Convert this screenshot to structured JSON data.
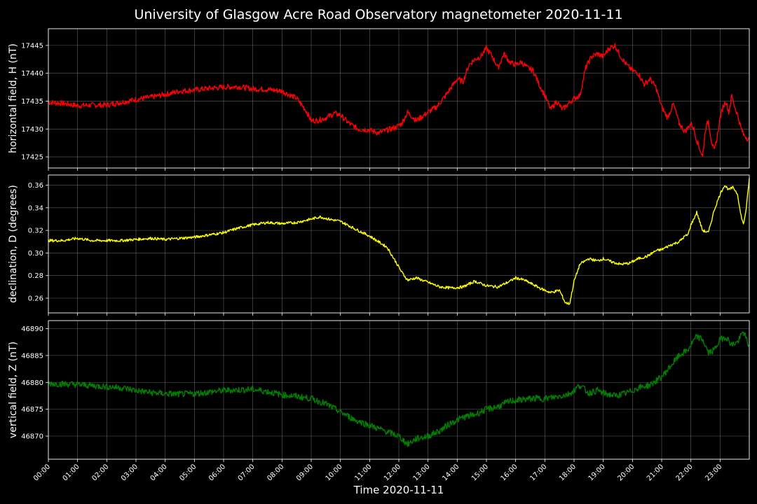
{
  "chart_data": {
    "title": "University of Glasgow Acre Road Observatory magnetometer 2020-11-11",
    "xlabel": "Time 2020-11-11",
    "x_tick_labels": [
      "00:00",
      "01:00",
      "02:00",
      "03:00",
      "04:00",
      "05:00",
      "06:00",
      "07:00",
      "08:00",
      "09:00",
      "10:00",
      "11:00",
      "12:00",
      "13:00",
      "14:00",
      "15:00",
      "16:00",
      "17:00",
      "18:00",
      "19:00",
      "20:00",
      "21:00",
      "22:00",
      "23:00"
    ],
    "xlim_hours": [
      0,
      24
    ],
    "grid": true,
    "background": "#000000",
    "panels": [
      {
        "type": "line",
        "ylabel": "horizontal field, H (nT)",
        "color": "#ff0000",
        "ylim": [
          17423,
          17448
        ],
        "yticks": [
          17425,
          17430,
          17435,
          17440,
          17445
        ],
        "ytick_labels": [
          "17425",
          "17430",
          "17435",
          "17440",
          "17445"
        ],
        "noise": 0.5,
        "x": [
          0,
          0.5,
          1,
          1.5,
          2,
          2.5,
          3,
          3.5,
          4,
          4.5,
          5,
          5.5,
          6,
          6.5,
          7,
          7.5,
          8,
          8.5,
          8.8,
          9,
          9.2,
          9.5,
          9.8,
          10,
          10.3,
          10.6,
          11,
          11.3,
          11.6,
          11.9,
          12.1,
          12.3,
          12.6,
          13,
          13.3,
          13.6,
          13.8,
          14,
          14.2,
          14.4,
          14.6,
          14.8,
          15,
          15.2,
          15.4,
          15.6,
          15.8,
          16,
          16.2,
          16.4,
          16.6,
          16.8,
          17,
          17.2,
          17.4,
          17.6,
          17.8,
          18,
          18.2,
          18.4,
          18.6,
          18.8,
          19,
          19.2,
          19.4,
          19.6,
          19.8,
          20,
          20.2,
          20.4,
          20.6,
          20.8,
          21,
          21.2,
          21.4,
          21.6,
          21.8,
          22,
          22.1,
          22.2,
          22.3,
          22.4,
          22.5,
          22.6,
          22.7,
          22.8,
          22.9,
          23,
          23.1,
          23.2,
          23.3,
          23.4,
          23.5,
          23.6,
          23.7,
          23.8,
          23.9,
          24
        ],
        "y": [
          17434.8,
          17434.6,
          17434.2,
          17434.3,
          17434.3,
          17434.8,
          17435.3,
          17435.7,
          17436.2,
          17436.8,
          17437.0,
          17437.3,
          17437.5,
          17437.6,
          17437.2,
          17437.1,
          17436.8,
          17435.5,
          17433.5,
          17431.5,
          17431.5,
          17432.0,
          17432.8,
          17432.5,
          17431.0,
          17430.0,
          17429.8,
          17429.3,
          17429.8,
          17430.3,
          17431.0,
          17433.0,
          17431.5,
          17433.0,
          17434.0,
          17436.0,
          17437.5,
          17439.0,
          17438.5,
          17441.5,
          17442.5,
          17443.0,
          17444.5,
          17443.0,
          17441.0,
          17443.5,
          17442.0,
          17441.5,
          17442.0,
          17441.0,
          17440.5,
          17438.0,
          17436.0,
          17433.5,
          17435.0,
          17433.5,
          17434.5,
          17435.5,
          17436.0,
          17441.0,
          17443.0,
          17443.5,
          17443.0,
          17444.5,
          17445.0,
          17443.0,
          17441.5,
          17440.5,
          17440.0,
          17438.0,
          17439.0,
          17437.5,
          17434.0,
          17432.0,
          17434.5,
          17431.0,
          17429.5,
          17431.0,
          17430.0,
          17428.0,
          17426.5,
          17425.0,
          17430.0,
          17431.5,
          17428.0,
          17426.0,
          17428.5,
          17432.0,
          17434.0,
          17435.0,
          17433.0,
          17436.0,
          17434.0,
          17432.5,
          17430.5,
          17429.0,
          17428.5,
          17428.0
        ]
      },
      {
        "type": "line",
        "ylabel": "declination, D (degrees)",
        "color": "#ffff00",
        "ylim": [
          0.247,
          0.369
        ],
        "yticks": [
          0.26,
          0.28,
          0.3,
          0.32,
          0.34,
          0.36
        ],
        "ytick_labels": [
          "0.26",
          "0.28",
          "0.30",
          "0.32",
          "0.34",
          "0.36"
        ],
        "noise": 0.0012,
        "x": [
          0,
          0.5,
          1,
          1.5,
          2,
          2.5,
          3,
          3.5,
          4,
          4.5,
          5,
          5.5,
          6,
          6.5,
          7,
          7.5,
          8,
          8.5,
          9,
          9.3,
          9.6,
          10,
          10.3,
          10.6,
          11,
          11.3,
          11.6,
          11.9,
          12.1,
          12.3,
          12.6,
          13,
          13.4,
          13.8,
          14.2,
          14.6,
          15,
          15.4,
          15.8,
          16,
          16.3,
          16.6,
          16.9,
          17.2,
          17.5,
          17.7,
          17.85,
          18,
          18.2,
          18.5,
          18.8,
          19,
          19.3,
          19.6,
          19.9,
          20.2,
          20.5,
          20.8,
          21,
          21.3,
          21.6,
          21.8,
          21.9,
          22,
          22.1,
          22.2,
          22.4,
          22.6,
          22.8,
          23,
          23.15,
          23.3,
          23.45,
          23.6,
          23.7,
          23.8,
          23.9,
          24
        ],
        "y": [
          0.311,
          0.311,
          0.313,
          0.311,
          0.311,
          0.311,
          0.312,
          0.313,
          0.312,
          0.313,
          0.314,
          0.316,
          0.318,
          0.322,
          0.325,
          0.327,
          0.326,
          0.327,
          0.33,
          0.332,
          0.33,
          0.328,
          0.324,
          0.32,
          0.315,
          0.31,
          0.305,
          0.292,
          0.283,
          0.276,
          0.278,
          0.274,
          0.27,
          0.269,
          0.27,
          0.275,
          0.271,
          0.27,
          0.275,
          0.278,
          0.276,
          0.272,
          0.268,
          0.265,
          0.267,
          0.256,
          0.255,
          0.275,
          0.29,
          0.295,
          0.293,
          0.295,
          0.292,
          0.29,
          0.291,
          0.295,
          0.297,
          0.302,
          0.303,
          0.307,
          0.31,
          0.315,
          0.316,
          0.325,
          0.33,
          0.336,
          0.32,
          0.318,
          0.338,
          0.352,
          0.36,
          0.356,
          0.358,
          0.352,
          0.335,
          0.325,
          0.34,
          0.366
        ]
      },
      {
        "type": "line",
        "ylabel": "vertical field, Z (nT)",
        "color": "#008000",
        "ylim": [
          46865.7,
          46891.5
        ],
        "yticks": [
          46870,
          46875,
          46880,
          46885,
          46890
        ],
        "ytick_labels": [
          "46870",
          "46875",
          "46880",
          "46885",
          "46890"
        ],
        "noise": 0.6,
        "x": [
          0,
          0.5,
          1,
          1.5,
          2,
          2.5,
          3,
          3.5,
          4,
          4.5,
          5,
          5.5,
          6,
          6.5,
          7,
          7.5,
          8,
          8.5,
          9,
          9.5,
          10,
          10.5,
          11,
          11.5,
          12,
          12.3,
          12.6,
          13,
          13.4,
          13.8,
          14.2,
          14.6,
          15,
          15.4,
          15.8,
          16.2,
          16.6,
          17,
          17.4,
          17.8,
          18,
          18.2,
          18.5,
          18.8,
          19,
          19.4,
          19.8,
          20.2,
          20.6,
          21,
          21.3,
          21.6,
          21.9,
          22,
          22.2,
          22.4,
          22.6,
          22.8,
          23,
          23.2,
          23.4,
          23.6,
          23.8,
          24
        ],
        "y": [
          46879.8,
          46879.7,
          46879.6,
          46879.4,
          46879.2,
          46879.0,
          46878.5,
          46878.1,
          46877.9,
          46877.8,
          46877.9,
          46878.2,
          46878.5,
          46878.6,
          46878.7,
          46878.3,
          46877.7,
          46877.4,
          46877.0,
          46876.0,
          46874.5,
          46873.0,
          46872.0,
          46871.0,
          46870.0,
          46868.5,
          46869.5,
          46870.0,
          46871.0,
          46872.5,
          46873.5,
          46874.0,
          46875.0,
          46875.5,
          46876.5,
          46876.8,
          46877.0,
          46877.0,
          46877.3,
          46877.8,
          46878.5,
          46879.5,
          46878.0,
          46878.5,
          46878.0,
          46877.5,
          46878.0,
          46879.0,
          46879.5,
          46881.0,
          46883.0,
          46885.0,
          46886.0,
          46887.0,
          46888.5,
          46888.0,
          46885.5,
          46886.0,
          46888.0,
          46888.5,
          46887.0,
          46887.5,
          46889.5,
          46886.5
        ]
      }
    ]
  }
}
